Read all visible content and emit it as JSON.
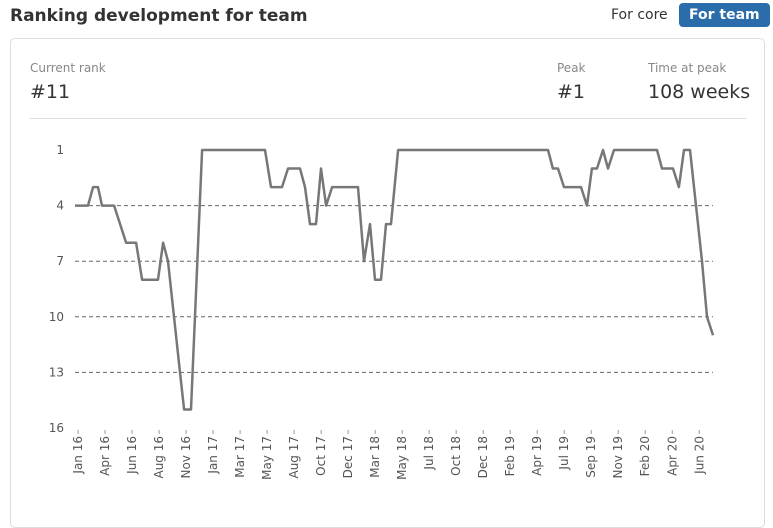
{
  "header": {
    "title": "Ranking development for team",
    "tabs": [
      "For core",
      "For team"
    ],
    "active_tab": 1
  },
  "stats": [
    {
      "label": "Current rank",
      "value": "#11"
    },
    {
      "label": "Peak",
      "value": "#1"
    },
    {
      "label": "Time at peak",
      "value": "108 weeks"
    }
  ],
  "chart_data": {
    "type": "line",
    "color": "#777777",
    "reversed_y": true,
    "grid": true,
    "ylim": [
      1,
      16
    ],
    "yticks": [
      1,
      4,
      7,
      10,
      13,
      16
    ],
    "xlim": [
      -0.26,
      54.07
    ],
    "xticks": [
      {
        "value": 0,
        "label": "Jan 16"
      },
      {
        "value": 2.3,
        "label": "Apr 16"
      },
      {
        "value": 4.6,
        "label": "Jun 16"
      },
      {
        "value": 6.9,
        "label": "Aug 16"
      },
      {
        "value": 9.2,
        "label": "Nov 16"
      },
      {
        "value": 11.5,
        "label": "Jan 17"
      },
      {
        "value": 13.8,
        "label": "Mar 17"
      },
      {
        "value": 16.1,
        "label": "May 17"
      },
      {
        "value": 18.4,
        "label": "Aug 17"
      },
      {
        "value": 20.7,
        "label": "Oct 17"
      },
      {
        "value": 23,
        "label": "Dec 17"
      },
      {
        "value": 25.3,
        "label": "Mar 18"
      },
      {
        "value": 27.6,
        "label": "May 18"
      },
      {
        "value": 29.9,
        "label": "Jul 18"
      },
      {
        "value": 32.2,
        "label": "Oct 18"
      },
      {
        "value": 34.5,
        "label": "Dec 18"
      },
      {
        "value": 36.8,
        "label": "Feb 19"
      },
      {
        "value": 39.1,
        "label": "Apr 19"
      },
      {
        "value": 41.4,
        "label": "Jul 19"
      },
      {
        "value": 43.7,
        "label": "Sep 19"
      },
      {
        "value": 46,
        "label": "Nov 19"
      },
      {
        "value": 48.3,
        "label": "Feb 20"
      },
      {
        "value": 50.6,
        "label": "Apr 20"
      },
      {
        "value": 52.9,
        "label": "Jun 20"
      }
    ],
    "x": [
      -0.26,
      0.85,
      1.28,
      1.7,
      2.04,
      3.07,
      3.58,
      4.09,
      4.94,
      5.45,
      6.81,
      7.24,
      7.66,
      8.17,
      8.68,
      9.03,
      9.62,
      10.56,
      15.92,
      16.43,
      17.37,
      17.88,
      18.9,
      19.33,
      19.75,
      20.26,
      20.69,
      21.12,
      21.63,
      23.84,
      24.35,
      24.86,
      25.29,
      25.8,
      26.22,
      26.65,
      27.25,
      40.02,
      40.44,
      40.87,
      41.38,
      42.83,
      43.34,
      43.76,
      44.19,
      44.7,
      45.13,
      45.64,
      49.3,
      49.73,
      50.66,
      51.17,
      51.6,
      52.11,
      52.62,
      53.13,
      53.56,
      54.07
    ],
    "values": [
      4,
      4,
      3,
      3,
      4,
      4,
      5,
      6,
      6,
      8,
      8,
      6,
      7,
      10,
      13,
      15,
      15,
      1,
      1,
      3,
      3,
      2,
      2,
      3,
      5,
      5,
      2,
      4,
      3,
      3,
      7,
      5,
      8,
      8,
      5,
      5,
      1,
      1,
      2,
      2,
      3,
      3,
      4,
      2,
      2,
      1,
      2,
      1,
      1,
      2,
      2,
      3,
      1,
      1,
      4,
      7,
      10,
      11
    ]
  }
}
